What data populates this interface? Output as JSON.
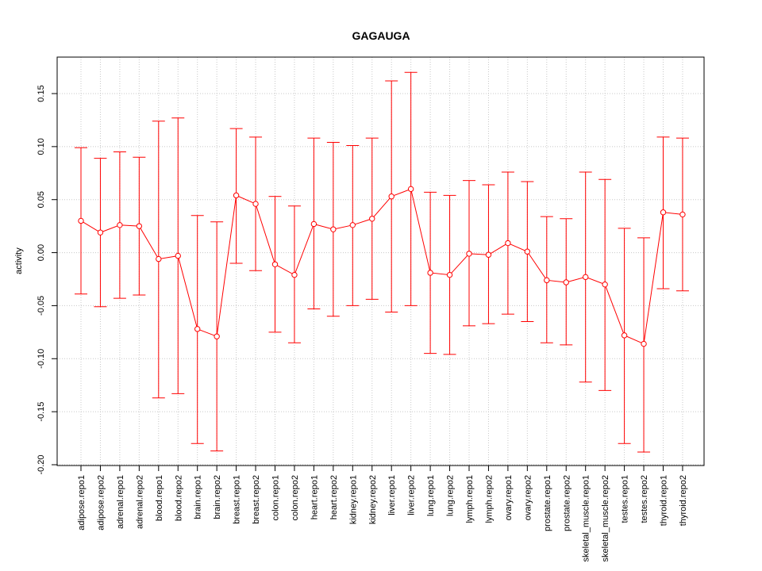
{
  "chart_data": {
    "type": "line",
    "title": "GAGAUGA",
    "xlabel": "",
    "ylabel": "activity",
    "ylim": [
      -0.2,
      0.17
    ],
    "yticks": [
      -0.2,
      -0.15,
      -0.1,
      -0.05,
      0.0,
      0.05,
      0.1,
      0.15
    ],
    "ytick_labels": [
      "-0.20",
      "-0.15",
      "-0.10",
      "-0.05",
      "0.00",
      "0.05",
      "0.10",
      "0.15"
    ],
    "grid": true,
    "categories": [
      "adipose.repo1",
      "adipose.repo2",
      "adrenal.repo1",
      "adrenal.repo2",
      "blood.repo1",
      "blood.repo2",
      "brain.repo1",
      "brain.repo2",
      "breast.repo1",
      "breast.repo2",
      "colon.repo1",
      "colon.repo2",
      "heart.repo1",
      "heart.repo2",
      "kidney.repo1",
      "kidney.repo2",
      "liver.repo1",
      "liver.repo2",
      "lung.repo1",
      "lung.repo2",
      "lymph.repo1",
      "lymph.repo2",
      "ovary.repo1",
      "ovary.repo2",
      "prostate.repo1",
      "prostate.repo2",
      "skeletal_muscle.repo1",
      "skeletal_muscle.repo2",
      "testes.repo1",
      "testes.repo2",
      "thyroid.repo1",
      "thyroid.repo2"
    ],
    "series": [
      {
        "color": "#ff0000",
        "values": [
          0.03,
          0.019,
          0.026,
          0.025,
          -0.006,
          -0.003,
          -0.072,
          -0.079,
          0.054,
          0.046,
          -0.011,
          -0.021,
          0.027,
          0.022,
          0.026,
          0.032,
          0.053,
          0.06,
          -0.019,
          -0.021,
          -0.001,
          -0.002,
          0.009,
          0.001,
          -0.026,
          -0.028,
          -0.023,
          -0.03,
          -0.078,
          -0.086,
          0.038,
          0.036
        ],
        "lower": [
          -0.039,
          -0.051,
          -0.043,
          -0.04,
          -0.137,
          -0.133,
          -0.18,
          -0.187,
          -0.01,
          -0.017,
          -0.075,
          -0.085,
          -0.053,
          -0.06,
          -0.05,
          -0.044,
          -0.056,
          -0.05,
          -0.095,
          -0.096,
          -0.069,
          -0.067,
          -0.058,
          -0.065,
          -0.085,
          -0.087,
          -0.122,
          -0.13,
          -0.18,
          -0.188,
          -0.034,
          -0.036
        ],
        "upper": [
          0.099,
          0.089,
          0.095,
          0.09,
          0.124,
          0.127,
          0.035,
          0.029,
          0.117,
          0.109,
          0.053,
          0.044,
          0.108,
          0.104,
          0.101,
          0.108,
          0.162,
          0.17,
          0.057,
          0.054,
          0.068,
          0.064,
          0.076,
          0.067,
          0.034,
          0.032,
          0.076,
          0.069,
          0.023,
          0.014,
          0.109,
          0.108
        ]
      }
    ]
  }
}
